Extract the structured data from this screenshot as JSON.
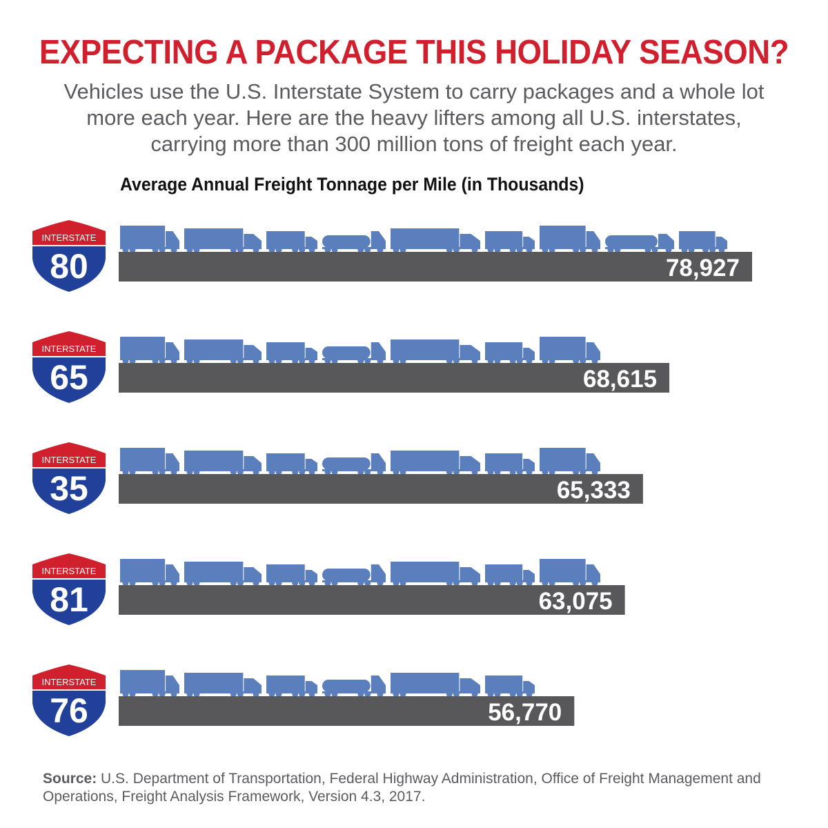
{
  "header": {
    "title": "EXPECTING A PACKAGE THIS HOLIDAY SEASON?",
    "subtitle_lines": [
      "Vehicles use the U.S. Interstate System to carry packages and a whole lot",
      "more each year. Here are the heavy lifters among all U.S. interstates,",
      "carrying more than 300 million tons of freight each year."
    ]
  },
  "footer": {
    "source_label": "Source:",
    "source_text": "U.S. Department of Transportation, Federal Highway Administration, Office of Freight Management and Operations, Freight Analysis Framework, Version 4.3, 2017."
  },
  "chart_data": {
    "type": "bar",
    "orientation": "horizontal",
    "title": "Average Annual Freight Tonnage per Mile (in Thousands)",
    "shield_caption": "INTERSTATE",
    "categories": [
      "80",
      "65",
      "35",
      "81",
      "76"
    ],
    "value_labels": [
      "78,927",
      "68,615",
      "65,333",
      "63,075",
      "56,770"
    ],
    "values": [
      78927,
      68615,
      65333,
      63075,
      56770
    ],
    "xlim": [
      0,
      78927
    ],
    "grid": false,
    "colors": {
      "bar": "#58585a",
      "truck": "#5b7fbd",
      "shield_red": "#d0202e",
      "shield_blue": "#21409a",
      "value_text": "#ffffff",
      "title": "#d0202e",
      "subtitle": "#5b5b5f"
    }
  }
}
